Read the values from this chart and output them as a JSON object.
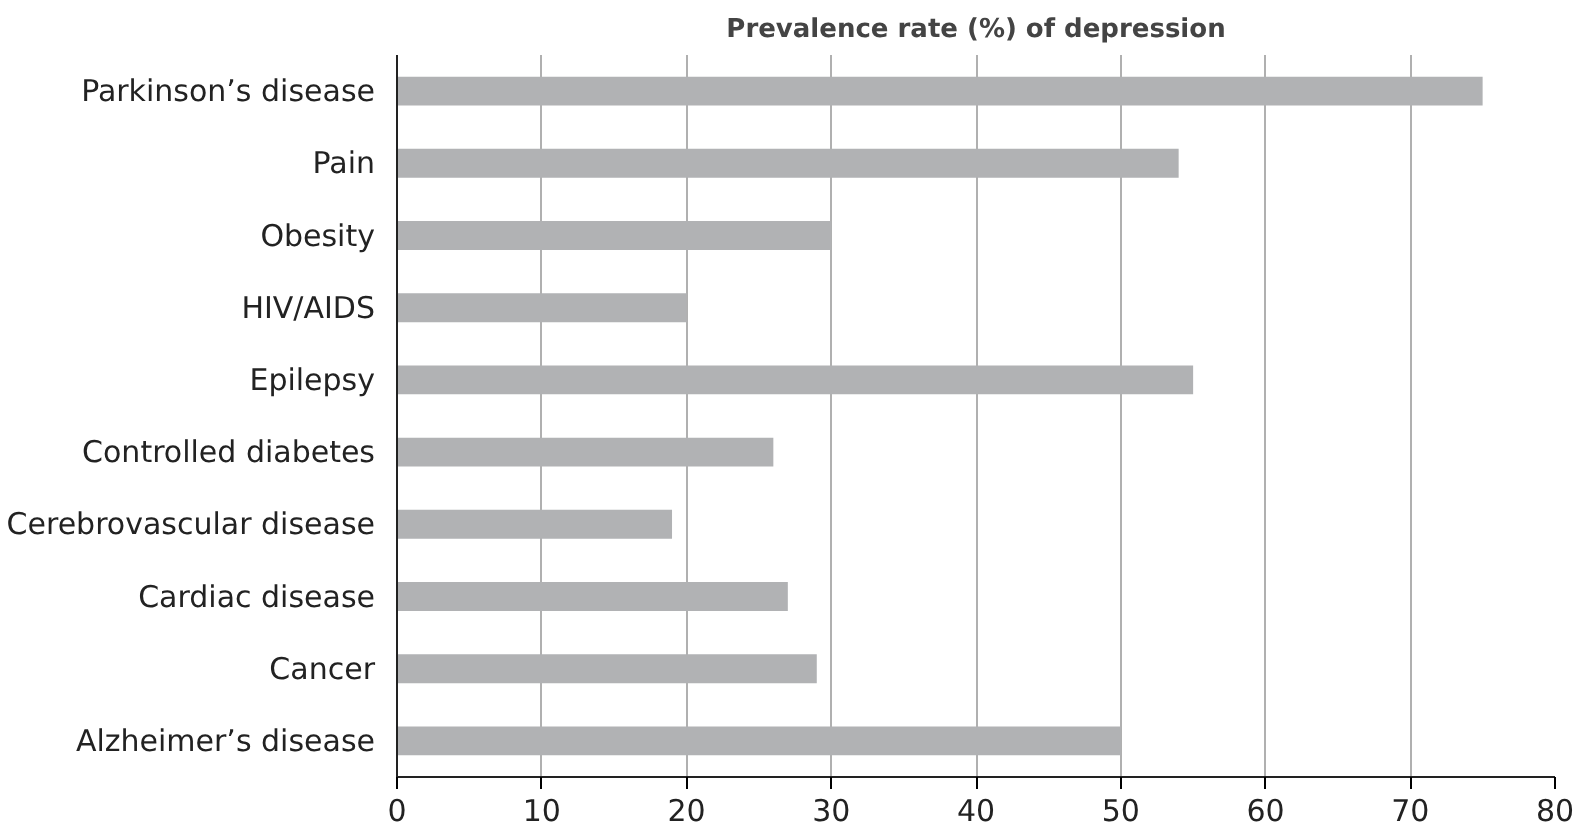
{
  "chart_data": {
    "type": "bar",
    "orientation": "horizontal",
    "title": "Prevalence rate (%) of depression",
    "categories": [
      "Parkinson’s disease",
      "Pain",
      "Obesity",
      "HIV/AIDS",
      "Epilepsy",
      "Controlled diabetes",
      "Cerebrovascular disease",
      "Cardiac disease",
      "Cancer",
      "Alzheimer’s disease"
    ],
    "values": [
      75,
      54,
      30,
      20,
      55,
      26,
      19,
      27,
      29,
      50
    ],
    "color": "#b1b2b4",
    "xlim": [
      0,
      80
    ],
    "xticks": [
      0,
      10,
      20,
      30,
      40,
      50,
      60,
      70,
      80
    ],
    "grid": "x"
  }
}
